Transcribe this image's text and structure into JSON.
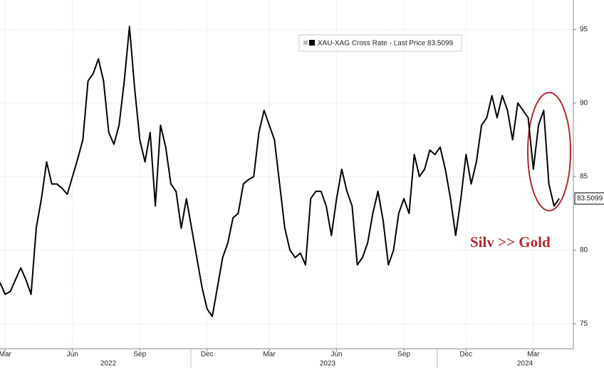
{
  "chart_data": {
    "type": "line",
    "annotation": "Silv >> Gold",
    "categories": [
      null,
      "Mar",
      null,
      null,
      null,
      null,
      null,
      null,
      null,
      null,
      null,
      null,
      null,
      null,
      "Jun",
      null,
      null,
      null,
      null,
      null,
      null,
      null,
      null,
      null,
      null,
      null,
      null,
      "Sep",
      null,
      null,
      null,
      null,
      null,
      null,
      null,
      null,
      null,
      null,
      null,
      null,
      "Dec",
      null,
      null,
      null,
      null,
      null,
      null,
      null,
      null,
      null,
      null,
      null,
      "Mar",
      null,
      null,
      null,
      null,
      null,
      null,
      null,
      null,
      null,
      null,
      null,
      null,
      "Jun",
      null,
      null,
      null,
      null,
      null,
      null,
      null,
      null,
      null,
      null,
      null,
      null,
      "Sep",
      null,
      null,
      null,
      null,
      null,
      null,
      null,
      null,
      null,
      null,
      null,
      "Dec",
      null,
      null,
      null,
      null,
      null,
      null,
      null,
      null,
      null,
      null,
      null,
      null,
      "Mar",
      null,
      null,
      null,
      null,
      null
    ],
    "year_labels": [
      "2022",
      "2023",
      "2024"
    ],
    "series": [
      {
        "name": "XAU-XAG Cross Rate - Last Price 83.5099",
        "color": "#000000",
        "values": [
          77.8,
          77.0,
          77.2,
          78.0,
          78.8,
          78.0,
          77.0,
          81.5,
          83.5,
          86.0,
          84.5,
          84.5,
          84.2,
          83.8,
          85.0,
          86.2,
          87.5,
          91.5,
          92.0,
          93.0,
          91.5,
          88.0,
          87.2,
          88.5,
          91.5,
          95.2,
          91.0,
          87.5,
          86.0,
          88.0,
          83.0,
          88.5,
          87.0,
          84.5,
          84.0,
          81.5,
          83.5,
          81.5,
          79.5,
          77.5,
          76.0,
          75.5,
          77.5,
          79.5,
          80.5,
          82.2,
          82.5,
          84.5,
          84.8,
          85.0,
          88.0,
          89.5,
          88.5,
          87.5,
          84.5,
          81.5,
          80.0,
          79.5,
          79.8,
          79.0,
          83.5,
          84.0,
          84.0,
          83.0,
          81.0,
          83.5,
          85.5,
          84.0,
          83.0,
          79.0,
          79.5,
          80.5,
          82.5,
          84.0,
          82.0,
          79.0,
          80.0,
          82.5,
          83.5,
          82.5,
          86.5,
          85.0,
          85.5,
          86.8,
          86.5,
          87.0,
          85.5,
          83.5,
          81.0,
          83.5,
          86.5,
          84.5,
          86.0,
          88.5,
          89.0,
          90.5,
          89.0,
          90.5,
          89.5,
          87.5,
          90.0,
          89.5,
          89.0,
          85.5,
          88.5,
          89.5,
          84.5,
          83.0,
          83.5099
        ]
      }
    ],
    "ylim": [
      73.3,
      97
    ],
    "yticks": [
      75,
      80,
      85,
      90,
      95
    ],
    "grid": true
  }
}
